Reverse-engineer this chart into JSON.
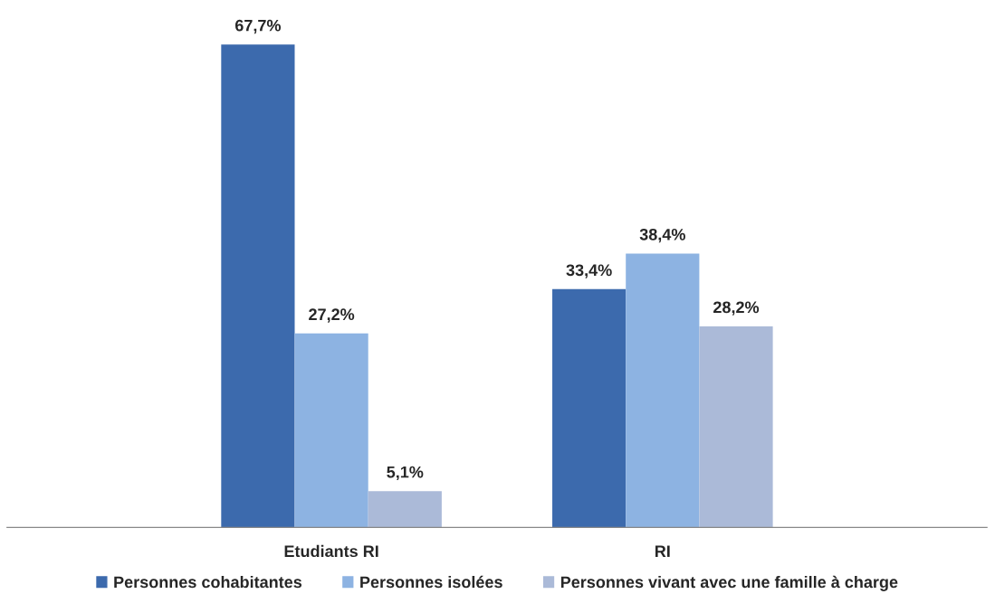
{
  "chart_data": {
    "type": "bar",
    "categories": [
      "Etudiants RI",
      "RI"
    ],
    "series": [
      {
        "name": "Personnes cohabitantes",
        "color": "#3c6aad",
        "values": [
          67.7,
          33.4
        ],
        "value_labels": [
          "67,7%",
          "33,4%"
        ]
      },
      {
        "name": "Personnes isolées",
        "color": "#8db3e2",
        "values": [
          27.2,
          38.4
        ],
        "value_labels": [
          "27,2%",
          "38,4%"
        ]
      },
      {
        "name": "Personnes vivant avec une famille à charge",
        "color": "#abbad8",
        "values": [
          5.1,
          28.2
        ],
        "value_labels": [
          "5,1%",
          "28,2%"
        ]
      }
    ],
    "legend": "bottom",
    "grid": false
  }
}
